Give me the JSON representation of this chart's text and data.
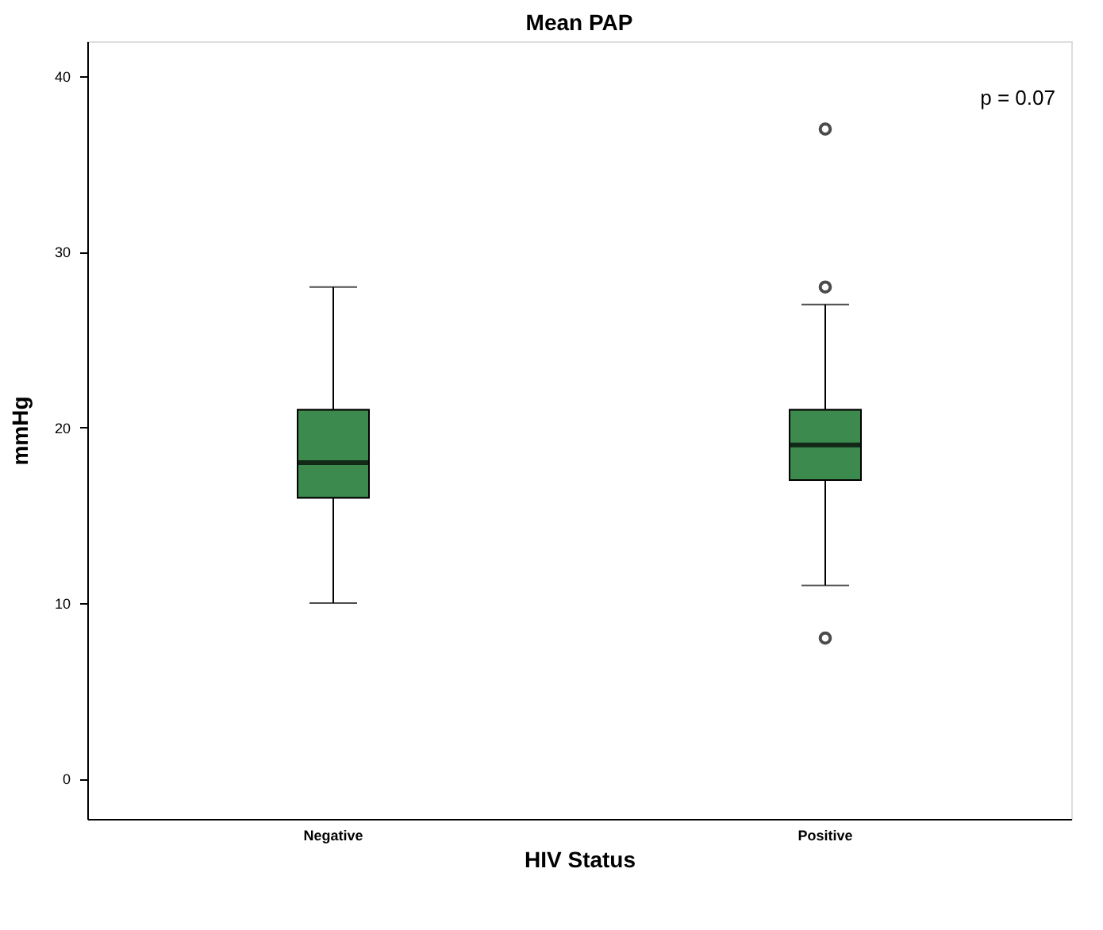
{
  "chart_data": {
    "type": "box",
    "title": "Mean PAP",
    "xlabel": "HIV Status",
    "ylabel": "mmHg",
    "categories": [
      "Negative",
      "Positive"
    ],
    "boxes": [
      {
        "low": 10,
        "q1": 16,
        "median": 18,
        "q3": 21,
        "high": 28
      },
      {
        "low": 11,
        "q1": 17,
        "median": 19,
        "q3": 21,
        "high": 27,
        "outliers": [
          28,
          8,
          37
        ]
      }
    ],
    "color": "#3d8a4f",
    "ylim": [
      -2.3,
      42
    ],
    "yticks": [
      0,
      10,
      20,
      30,
      40
    ],
    "grid": false,
    "annotations": [
      "p = 0.07"
    ]
  }
}
